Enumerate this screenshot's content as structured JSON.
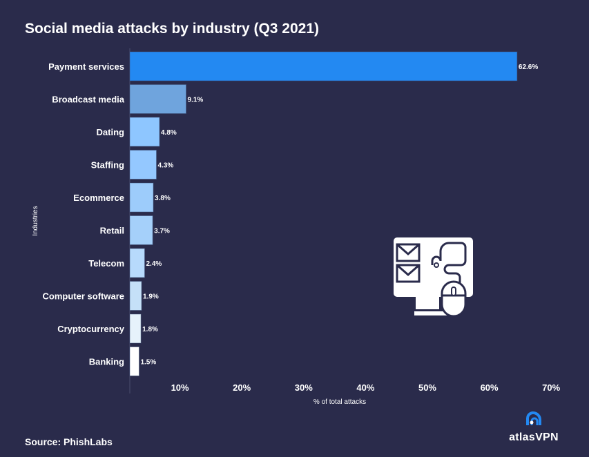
{
  "chart_data": {
    "type": "bar",
    "orientation": "horizontal",
    "title": "Social media attacks by industry (Q3 2021)",
    "xlabel": "% of total attacks",
    "ylabel": "Industries",
    "xlim": [
      0,
      70
    ],
    "xticks": [
      "10%",
      "20%",
      "30%",
      "40%",
      "50%",
      "60%",
      "70%"
    ],
    "xtick_values": [
      10,
      20,
      30,
      40,
      50,
      60,
      70
    ],
    "grid": false,
    "categories": [
      "Payment services",
      "Broadcast media",
      "Dating",
      "Staffing",
      "Ecommerce",
      "Retail",
      "Telecom",
      "Computer software",
      "Cryptocurrency",
      "Banking"
    ],
    "values": [
      62.6,
      9.1,
      4.8,
      4.3,
      3.8,
      3.7,
      2.4,
      1.9,
      1.8,
      1.5
    ],
    "data_labels": [
      "62.6%",
      "9.1%",
      "4.8%",
      "4.3%",
      "3.8%",
      "3.7%",
      "2.4%",
      "1.9%",
      "1.8%",
      "1.5%"
    ],
    "colors": [
      "#2389f2",
      "#6fa4dd",
      "#8ec6ff",
      "#94c8ff",
      "#9dccfb",
      "#a5d0fa",
      "#b7dafc",
      "#c5e0f8",
      "#e6f2fb",
      "#ffffff"
    ]
  },
  "source": "Source: PhishLabs",
  "logo": "atlasVPN",
  "colors": {
    "background": "#2a2b4b",
    "accent": "#2389f2"
  },
  "illustration": "computer-phishing-icon"
}
